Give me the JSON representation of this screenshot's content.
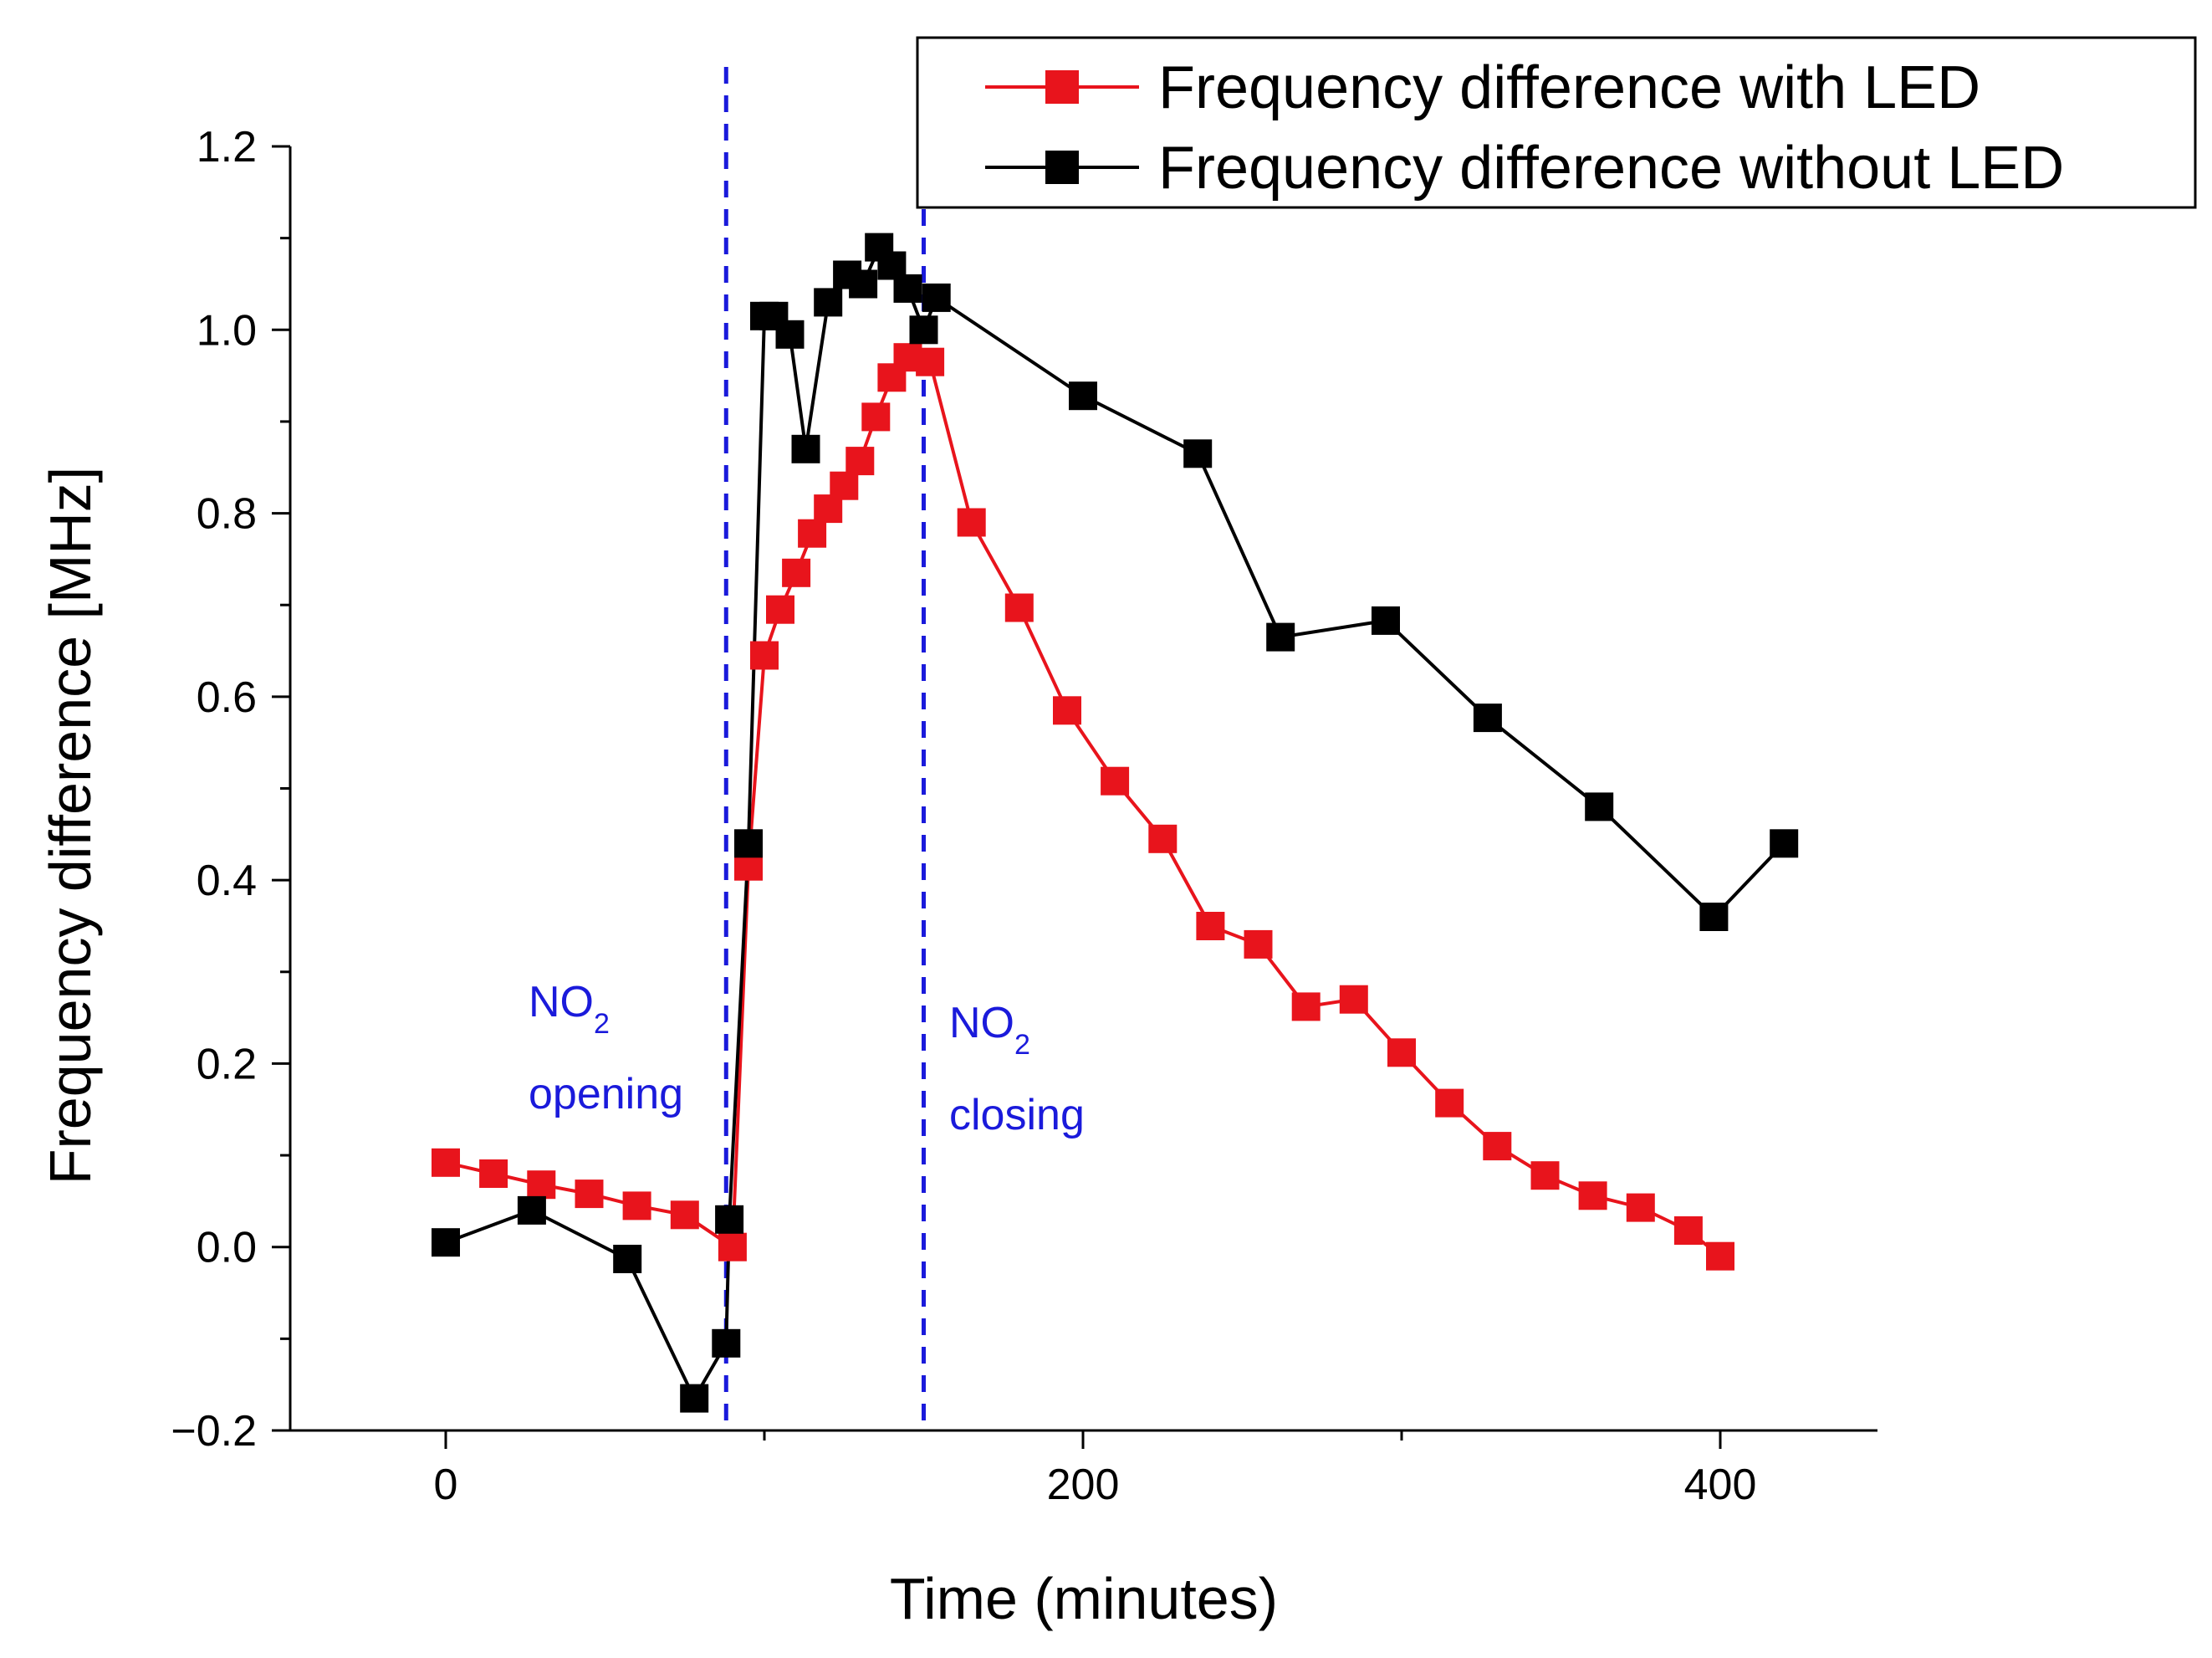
{
  "chart_data": {
    "type": "line",
    "title": "",
    "xlabel": "Time (minutes)",
    "ylabel": "Frequency difference [MHz]",
    "xlim": [
      -50,
      450
    ],
    "ylim": [
      -0.2,
      1.2
    ],
    "xticks": [
      0,
      200,
      400
    ],
    "xtick_labels": [
      "0",
      "200",
      "400"
    ],
    "yticks": [
      -0.2,
      0.0,
      0.2,
      0.4,
      0.6,
      0.8,
      1.0,
      1.2
    ],
    "ytick_labels": [
      "−0.2",
      "0.0",
      "0.2",
      "0.4",
      "0.6",
      "0.8",
      "1.0",
      "1.2"
    ],
    "legend_position": "top-right",
    "series": [
      {
        "name": "Frequency difference with LED",
        "color": "#e8141c",
        "marker": "square",
        "x": [
          0,
          15,
          30,
          45,
          60,
          75,
          90,
          95,
          100,
          105,
          110,
          115,
          120,
          125,
          130,
          135,
          140,
          145,
          152,
          165,
          180,
          195,
          210,
          225,
          240,
          255,
          270,
          285,
          300,
          315,
          330,
          345,
          360,
          375,
          390,
          400
        ],
        "y": [
          0.092,
          0.08,
          0.068,
          0.058,
          0.045,
          0.035,
          0.0,
          0.415,
          0.645,
          0.695,
          0.735,
          0.778,
          0.805,
          0.83,
          0.857,
          0.905,
          0.948,
          0.97,
          0.965,
          0.79,
          0.697,
          0.585,
          0.508,
          0.445,
          0.35,
          0.33,
          0.262,
          0.27,
          0.212,
          0.157,
          0.11,
          0.078,
          0.056,
          0.043,
          0.018,
          -0.01
        ]
      },
      {
        "name": "Frequency difference without LED",
        "color": "#000000",
        "marker": "square",
        "x": [
          0,
          27,
          57,
          78,
          88,
          89,
          95,
          100,
          103,
          108,
          113,
          120,
          126,
          131,
          136,
          140,
          145,
          150,
          154,
          200,
          236,
          262,
          295,
          327,
          362,
          398,
          420
        ],
        "y": [
          0.005,
          0.04,
          -0.013,
          -0.165,
          -0.105,
          0.03,
          0.44,
          1.015,
          1.015,
          0.995,
          0.87,
          1.03,
          1.06,
          1.05,
          1.09,
          1.07,
          1.045,
          1.0,
          1.035,
          0.928,
          0.865,
          0.665,
          0.683,
          0.577,
          0.48,
          0.36,
          0.44
        ]
      }
    ],
    "vertical_lines": [
      {
        "x": 88,
        "color": "#1a1adb",
        "style": "dashed"
      },
      {
        "x": 150,
        "color": "#1a1adb",
        "style": "dashed"
      }
    ],
    "annotations": [
      {
        "line1": "NO",
        "sub": "2",
        "line2": "opening"
      },
      {
        "line1": "NO",
        "sub": "2",
        "line2": "closing"
      }
    ]
  }
}
